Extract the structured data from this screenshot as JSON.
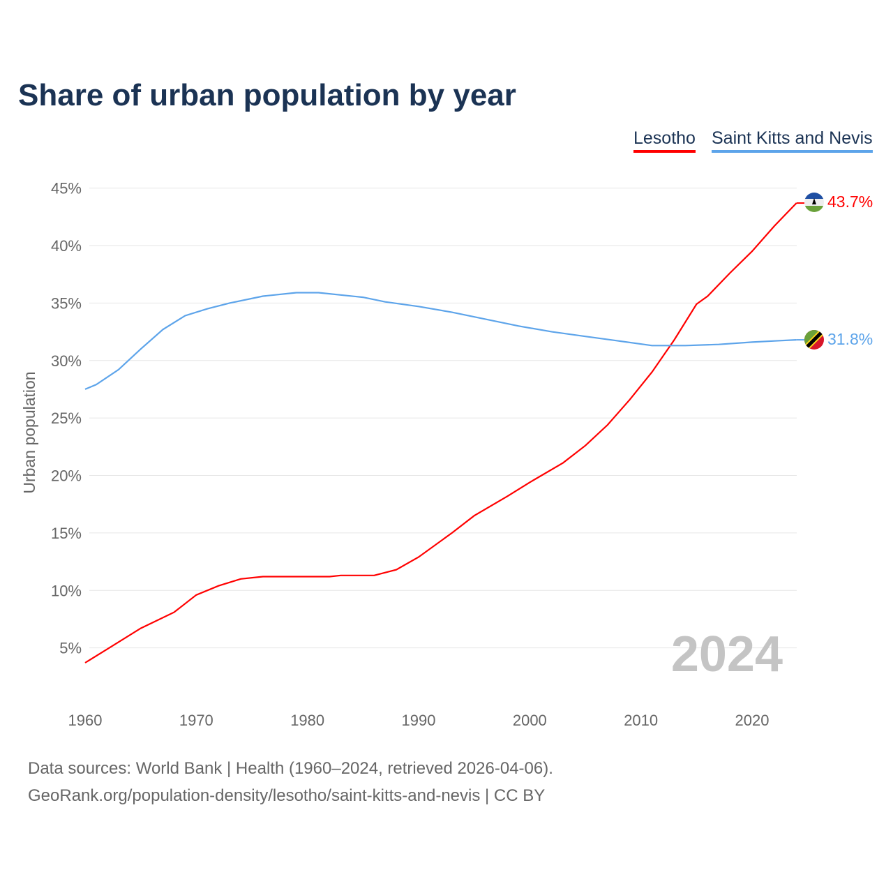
{
  "chart_data": {
    "type": "line",
    "title": "Share of urban population by year",
    "ylabel": "Urban population",
    "xlabel": "",
    "xlim": [
      1960,
      2024
    ],
    "ylim": [
      0,
      45
    ],
    "x_ticks": [
      "1960",
      "1970",
      "1980",
      "1990",
      "2000",
      "2010",
      "2020"
    ],
    "y_ticks": [
      "5%",
      "10%",
      "15%",
      "20%",
      "25%",
      "30%",
      "35%",
      "40%",
      "45%"
    ],
    "year_watermark": "2024",
    "legend_position": "top-right",
    "series": [
      {
        "name": "Lesotho",
        "color": "#ff0000",
        "end_label": "43.7%",
        "flag": "lesotho-flag",
        "x": [
          1960,
          1962,
          1965,
          1968,
          1970,
          1972,
          1974,
          1976,
          1980,
          1982,
          1983,
          1986,
          1988,
          1990,
          1993,
          1995,
          1998,
          2000,
          2003,
          2005,
          2007,
          2009,
          2011,
          2013,
          2015,
          2016,
          2018,
          2020,
          2022,
          2024
        ],
        "values": [
          3.7,
          4.9,
          6.7,
          8.1,
          9.6,
          10.4,
          11.0,
          11.2,
          11.2,
          11.2,
          11.3,
          11.3,
          11.8,
          12.9,
          15.0,
          16.5,
          18.2,
          19.4,
          21.1,
          22.6,
          24.4,
          26.6,
          29.0,
          31.8,
          34.9,
          35.6,
          37.6,
          39.5,
          41.7,
          43.7
        ]
      },
      {
        "name": "Saint Kitts and Nevis",
        "color": "#5da4ea",
        "end_label": "31.8%",
        "flag": "saint-kitts-and-nevis-flag",
        "x": [
          1960,
          1961,
          1963,
          1965,
          1967,
          1969,
          1971,
          1973,
          1976,
          1979,
          1981,
          1985,
          1987,
          1990,
          1993,
          1996,
          1999,
          2002,
          2005,
          2008,
          2011,
          2014,
          2017,
          2020,
          2022,
          2024
        ],
        "values": [
          27.5,
          27.9,
          29.2,
          31.0,
          32.7,
          33.9,
          34.5,
          35.0,
          35.6,
          35.9,
          35.9,
          35.5,
          35.1,
          34.7,
          34.2,
          33.6,
          33.0,
          32.5,
          32.1,
          31.7,
          31.3,
          31.3,
          31.4,
          31.6,
          31.7,
          31.8
        ]
      }
    ]
  },
  "footer": {
    "source": "Data sources: World Bank | Health (1960–2024, retrieved 2026-04-06).",
    "url": "GeoRank.org/population-density/lesotho/saint-kitts-and-nevis | CC BY"
  }
}
